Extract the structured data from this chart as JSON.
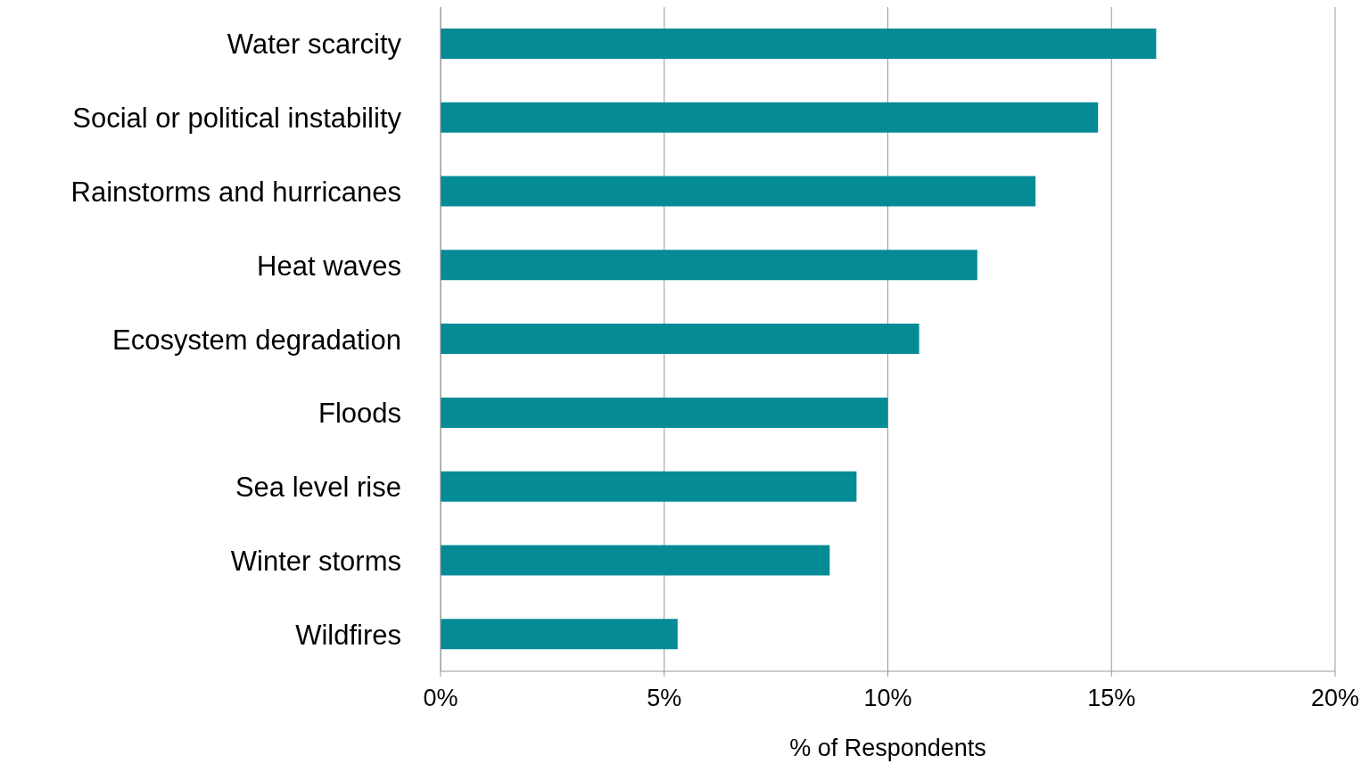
{
  "chart_data": {
    "type": "bar",
    "orientation": "horizontal",
    "xlabel": "% of Respondents",
    "categories": [
      "Water scarcity",
      "Social or political instability",
      "Rainstorms and hurricanes",
      "Heat waves",
      "Ecosystem degradation",
      "Floods",
      "Sea level rise",
      "Winter storms",
      "Wildfires"
    ],
    "values": [
      16.0,
      14.7,
      13.3,
      12.0,
      10.7,
      10.0,
      9.3,
      8.7,
      5.3
    ],
    "color": "#058b96",
    "xlim": [
      0,
      20
    ],
    "xticks": [
      {
        "value": 0,
        "label": "0%"
      },
      {
        "value": 5,
        "label": "5%"
      },
      {
        "value": 10,
        "label": "10%"
      },
      {
        "value": 15,
        "label": "15%"
      },
      {
        "value": 20,
        "label": "20%"
      }
    ],
    "grid": "x",
    "legend": false
  }
}
